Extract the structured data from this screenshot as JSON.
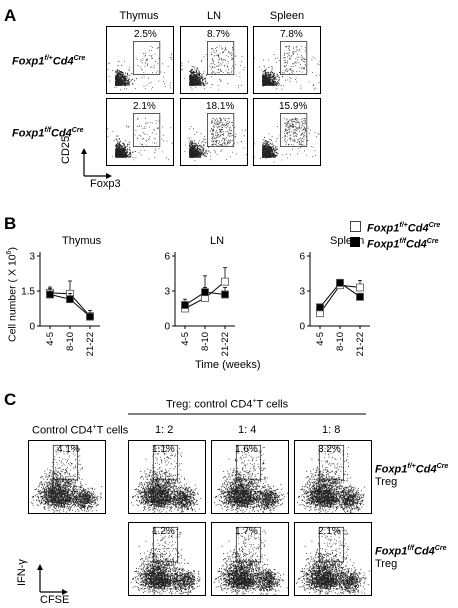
{
  "panel_a": {
    "letter": "A",
    "columns": [
      "Thymus",
      "LN",
      "Spleen"
    ],
    "rows": [
      {
        "genotype_main": "Foxp1",
        "genotype_sup1": "f/+",
        "genotype_mid": "Cd4",
        "genotype_sup2": "Cre",
        "percents": [
          "2.5%",
          "8.7%",
          "7.8%"
        ]
      },
      {
        "genotype_main": "Foxp1",
        "genotype_sup1": "f/f",
        "genotype_mid": "Cd4",
        "genotype_sup2": "Cre",
        "percents": [
          "2.1%",
          "18.1%",
          "15.9%"
        ]
      }
    ],
    "y_axis_label": "CD25",
    "x_axis_label": "Foxp3"
  },
  "panel_b": {
    "letter": "B",
    "legend": [
      {
        "main": "Foxp1",
        "sup1": "f/+",
        "mid": "Cd4",
        "sup2": "Cre",
        "marker": "open-square"
      },
      {
        "main": "Foxp1",
        "sup1": "f/f",
        "mid": "Cd4",
        "sup2": "Cre",
        "marker": "filled-square"
      }
    ],
    "y_label": "Cell number ( X 10",
    "y_label_sup": "6",
    "y_label_end": ")",
    "x_label": "Time (weeks)"
  },
  "chart_data": {
    "type": "line",
    "categories": [
      "4-5",
      "8-10",
      "21-22"
    ],
    "xlabel": "Time (weeks)",
    "ylabel": "Cell number ( X 10^6 )",
    "legend_position": "top-right",
    "subplots": [
      {
        "title": "Thymus",
        "ylim": [
          0,
          3
        ],
        "yticks": [
          "0",
          "1.5",
          "3"
        ],
        "series": [
          {
            "name": "Foxp1 f/+ Cd4 Cre",
            "marker": "open",
            "values": [
              1.42,
              1.38,
              0.42
            ],
            "errors": [
              0.25,
              0.55,
              0.25
            ]
          },
          {
            "name": "Foxp1 f/f Cd4 Cre",
            "marker": "filled",
            "values": [
              1.35,
              1.15,
              0.4
            ],
            "errors": [
              0.25,
              0.25,
              0.15
            ]
          }
        ]
      },
      {
        "title": "LN",
        "ylim": [
          0,
          6
        ],
        "yticks": [
          "0",
          "3",
          "6"
        ],
        "series": [
          {
            "name": "Foxp1 f/+ Cd4 Cre",
            "marker": "open",
            "values": [
              1.5,
              2.4,
              3.8
            ],
            "errors": [
              0.4,
              0.9,
              1.2
            ]
          },
          {
            "name": "Foxp1 f/f Cd4 Cre",
            "marker": "filled",
            "values": [
              1.8,
              2.9,
              2.7
            ],
            "errors": [
              0.5,
              1.4,
              0.6
            ]
          }
        ]
      },
      {
        "title": "Spleen",
        "ylim": [
          0,
          6
        ],
        "yticks": [
          "0",
          "3",
          "6"
        ],
        "series": [
          {
            "name": "Foxp1 f/+ Cd4 Cre",
            "marker": "open",
            "values": [
              1.1,
              3.5,
              3.3
            ],
            "errors": [
              0.3,
              0.3,
              0.6
            ]
          },
          {
            "name": "Foxp1 f/f Cd4 Cre",
            "marker": "filled",
            "values": [
              1.6,
              3.7,
              2.5
            ],
            "errors": [
              0.3,
              0.3,
              0.3
            ]
          }
        ]
      }
    ]
  },
  "panel_c": {
    "letter": "C",
    "header": "Treg: control CD4",
    "header_sup": "+",
    "header_end": "T cells",
    "control_label": "Control CD4",
    "control_sup": "+",
    "control_end": "T cells",
    "ratios": [
      "1: 2",
      "1: 4",
      "1: 8"
    ],
    "control_percent": "4.1%",
    "rows": [
      {
        "genotype_main": "Foxp1",
        "genotype_sup1": "f/+",
        "genotype_mid": "Cd4",
        "genotype_sup2": "Cre",
        "suffix": "Treg",
        "percents": [
          "1.1%",
          "1.6%",
          "3.2%"
        ]
      },
      {
        "genotype_main": "Foxp1",
        "genotype_sup1": "f/f",
        "genotype_mid": "Cd4",
        "genotype_sup2": "Cre",
        "suffix": "Treg",
        "percents": [
          "1.2%",
          "1.7%",
          "2.1%"
        ]
      }
    ],
    "y_axis_label": "IFN-γ",
    "x_axis_label": "CFSE"
  }
}
